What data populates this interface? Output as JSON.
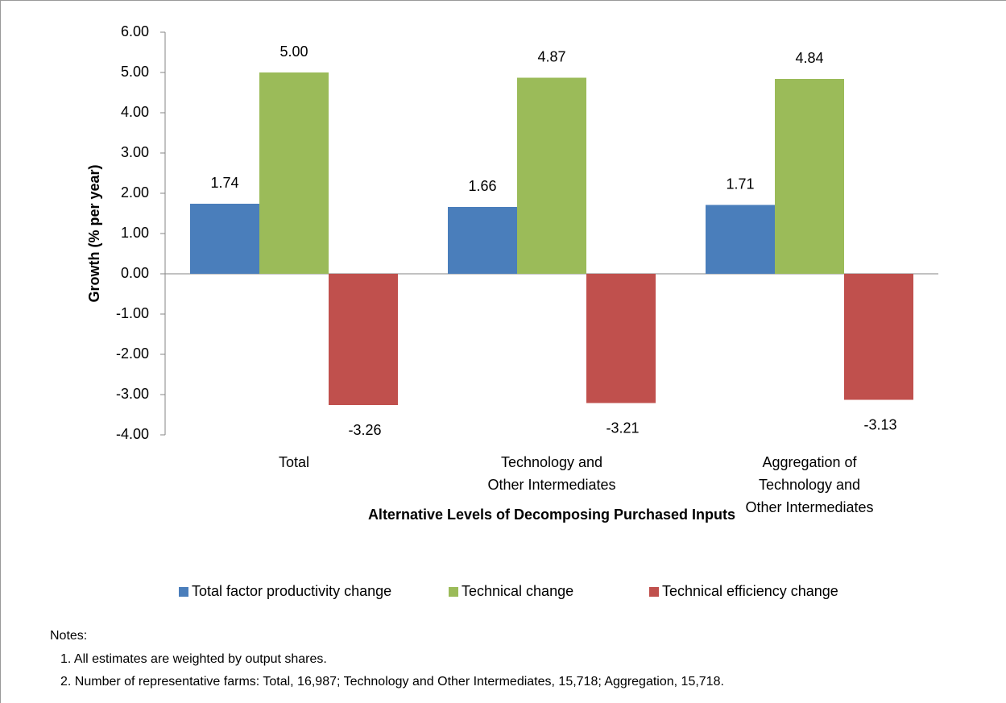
{
  "chart_data": {
    "type": "bar",
    "y_label": "Growth (% per year)",
    "x_label": "Alternative Levels of Decomposing  Purchased Inputs",
    "categories": [
      [
        "Total"
      ],
      [
        "Technology and",
        "Other Intermediates"
      ],
      [
        "Aggregation of",
        "Technology and",
        "Other Intermediates"
      ]
    ],
    "series": [
      {
        "name": "Total factor productivity change",
        "color": "#4a7ebb",
        "values": [
          1.74,
          1.66,
          1.71
        ],
        "value_labels": [
          "1.74",
          "1.66",
          "1.71"
        ]
      },
      {
        "name": "Technical change",
        "color": "#9bbb59",
        "values": [
          5.0,
          4.87,
          4.84
        ],
        "value_labels": [
          "5.00",
          "4.87",
          "4.84"
        ]
      },
      {
        "name": "Technical efficiency change",
        "color": "#c0504d",
        "values": [
          -3.26,
          -3.21,
          -3.13
        ],
        "value_labels": [
          "-3.26",
          "-3.21",
          "-3.13"
        ]
      }
    ],
    "ylim": [
      -4,
      6
    ],
    "yticks": [
      {
        "value": 6,
        "label": "6.00"
      },
      {
        "value": 5,
        "label": "5.00"
      },
      {
        "value": 4,
        "label": "4.00"
      },
      {
        "value": 3,
        "label": "3.00"
      },
      {
        "value": 2,
        "label": "2.00"
      },
      {
        "value": 1,
        "label": "1.00"
      },
      {
        "value": 0,
        "label": "0.00"
      },
      {
        "value": -1,
        "label": "-1.00"
      },
      {
        "value": -2,
        "label": "-2.00"
      },
      {
        "value": -3,
        "label": "-3.00"
      },
      {
        "value": -4,
        "label": "-4.00"
      }
    ],
    "legend": "bottom",
    "notes": {
      "heading": "Notes:",
      "items": [
        "1. All estimates are weighted by output shares.",
        "2. Number of representative farms: Total, 16,987; Technology and Other Intermediates, 15,718; Aggregation, 15,718."
      ]
    }
  }
}
